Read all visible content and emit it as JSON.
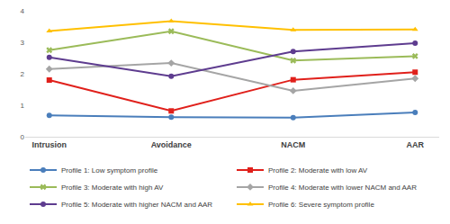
{
  "chart_data": {
    "type": "line",
    "categories": [
      "Intrusion",
      "Avoidance",
      "NACM",
      "AAR"
    ],
    "series": [
      {
        "name": "Profile 1: Low symptom profile",
        "color": "#4a7ebb",
        "marker": "circle",
        "values": [
          0.68,
          0.62,
          0.61,
          0.77
        ]
      },
      {
        "name": "Profile 2: Moderate with low AV",
        "color": "#e0201b",
        "marker": "square",
        "values": [
          1.8,
          0.82,
          1.81,
          2.05
        ]
      },
      {
        "name": "Profile 3: Moderate with high AV",
        "color": "#9bbb59",
        "marker": "x",
        "values": [
          2.75,
          3.35,
          2.42,
          2.56
        ]
      },
      {
        "name": "Profile 4: Moderate with lower NACM and AAR",
        "color": "#a5a5a5",
        "marker": "diamond",
        "values": [
          2.15,
          2.34,
          1.46,
          1.85
        ]
      },
      {
        "name": "Profile 5: Moderate with higher NACM and AAR",
        "color": "#5e3c8f",
        "marker": "circle",
        "values": [
          2.52,
          1.92,
          2.71,
          2.97
        ]
      },
      {
        "name": "Profile 6: Severe symptom profile",
        "color": "#ffc000",
        "marker": "triangle-up",
        "values": [
          3.36,
          3.67,
          3.39,
          3.41
        ]
      }
    ],
    "ylim": [
      0,
      4
    ],
    "yticks": [
      0,
      1,
      2,
      3,
      4
    ],
    "grid": false,
    "legend": "bottom"
  }
}
